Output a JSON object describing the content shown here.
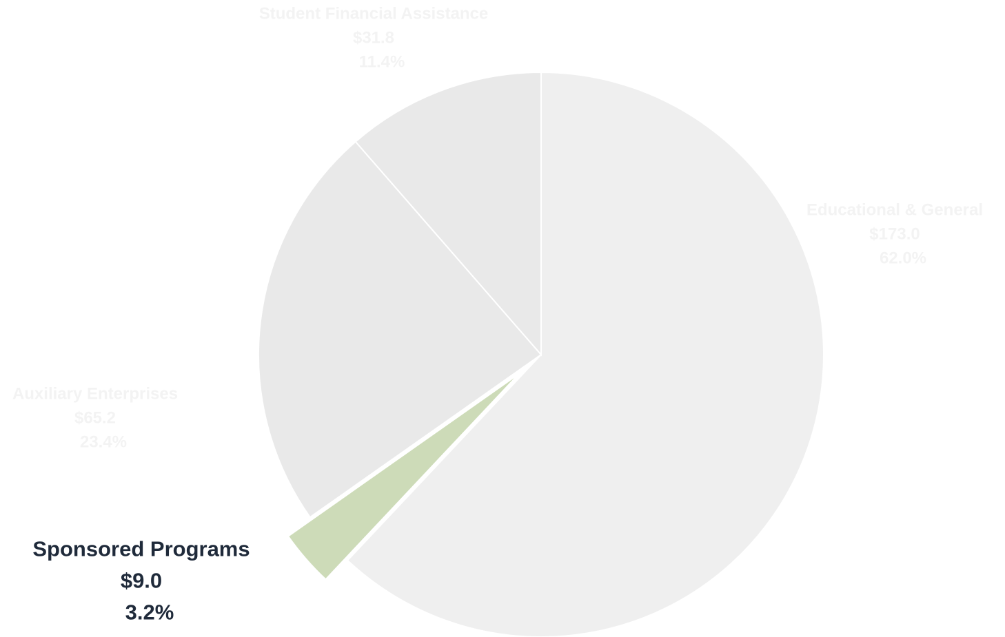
{
  "chart_data": {
    "type": "pie",
    "title": "",
    "start_angle_deg": 0,
    "direction": "clockwise",
    "colors": {
      "muted_fill": "#efefef",
      "muted_fill_alt": "#e9e9e9",
      "highlight_fill": "#cddbb8",
      "muted_text": "#f3f3f3",
      "highlight_text": "#1f2a3a"
    },
    "slices": [
      {
        "name": "Educational & General",
        "value_label": "$173.0",
        "value": 173.0,
        "percent_label": "62.0%",
        "percent": 62.0,
        "highlighted": false
      },
      {
        "name": "Sponsored Programs",
        "value_label": "$9.0",
        "value": 9.0,
        "percent_label": "3.2%",
        "percent": 3.2,
        "highlighted": true
      },
      {
        "name": "Auxiliary Enterprises",
        "value_label": "$65.2",
        "value": 65.2,
        "percent_label": "23.4%",
        "percent": 23.4,
        "highlighted": false
      },
      {
        "name": "Student Financial Assistance",
        "value_label": "$31.8",
        "value": 31.8,
        "percent_label": "11.4%",
        "percent": 11.4,
        "highlighted": false
      }
    ]
  }
}
